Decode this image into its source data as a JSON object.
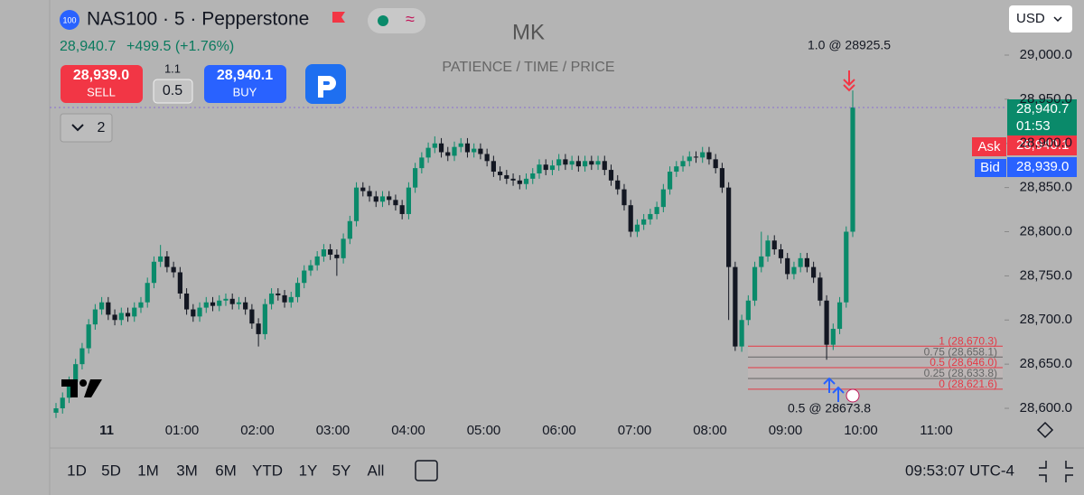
{
  "header": {
    "badge": "100",
    "symbol": "NAS100 · 5 · Pepperstone",
    "price": "28,940.7",
    "change": "+499.5 (+1.76%)"
  },
  "trade": {
    "sell_price": "28,939.0",
    "sell": "SELL",
    "spread_top": "1.1",
    "spread": "0.5",
    "buy_price": "28,940.1",
    "buy": "BUY"
  },
  "indicators": "2",
  "currency": "USD",
  "chart": {
    "type": "candlestick",
    "title": "MK",
    "subtitle": "PATIENCE / TIME / PRICE",
    "ylim": [
      28589.8,
      29062.4
    ],
    "yticks": [
      {
        "value": 28600,
        "label": "28,600.0"
      },
      {
        "value": 28650,
        "label": "28,650.0"
      },
      {
        "value": 28700,
        "label": "28,700.0"
      },
      {
        "value": 28750,
        "label": "28,750.0"
      },
      {
        "value": 28800,
        "label": "28,800.0"
      },
      {
        "value": 28850,
        "label": "28,850.0"
      },
      {
        "value": 28900,
        "label": "28,900.0"
      },
      {
        "value": 28950,
        "label": "28,950.0"
      },
      {
        "value": 29000,
        "label": "29,000.0"
      }
    ],
    "xlabels": [
      "11",
      "01:00",
      "02:00",
      "03:00",
      "04:00",
      "05:00",
      "06:00",
      "07:00",
      "08:00",
      "09:00",
      "10:00",
      "11:00"
    ],
    "up_color": "#0a8a6a",
    "down_color": "#131722",
    "candles": [
      [
        28595,
        28606,
        28589,
        28600
      ],
      [
        28600,
        28618,
        28594,
        28612
      ],
      [
        28612,
        28636,
        28606,
        28630
      ],
      [
        28630,
        28656,
        28624,
        28650
      ],
      [
        28650,
        28674,
        28644,
        28668
      ],
      [
        28668,
        28701,
        28662,
        28695
      ],
      [
        28695,
        28718,
        28689,
        28712
      ],
      [
        28712,
        28726,
        28706,
        28720
      ],
      [
        28720,
        28726,
        28700,
        28706
      ],
      [
        28706,
        28712,
        28694,
        28700
      ],
      [
        28700,
        28714,
        28694,
        28708
      ],
      [
        28708,
        28714,
        28698,
        28704
      ],
      [
        28704,
        28720,
        28698,
        28714
      ],
      [
        28714,
        28726,
        28708,
        28720
      ],
      [
        28720,
        28748,
        28714,
        28742
      ],
      [
        28742,
        28772,
        28736,
        28766
      ],
      [
        28766,
        28785,
        28760,
        28772
      ],
      [
        28772,
        28778,
        28754,
        28760
      ],
      [
        28760,
        28766,
        28748,
        28754
      ],
      [
        28754,
        28760,
        28724,
        28730
      ],
      [
        28730,
        28736,
        28706,
        28712
      ],
      [
        28712,
        28718,
        28698,
        28704
      ],
      [
        28704,
        28720,
        28698,
        28714
      ],
      [
        28714,
        28726,
        28708,
        28720
      ],
      [
        28720,
        28726,
        28710,
        28716
      ],
      [
        28716,
        28728,
        28710,
        28722
      ],
      [
        28722,
        28730,
        28716,
        28724
      ],
      [
        28724,
        28730,
        28712,
        28718
      ],
      [
        28718,
        28726,
        28712,
        28720
      ],
      [
        28720,
        28726,
        28706,
        28712
      ],
      [
        28712,
        28718,
        28690,
        28696
      ],
      [
        28696,
        28702,
        28670,
        28684
      ],
      [
        28684,
        28724,
        28678,
        28718
      ],
      [
        28718,
        28736,
        28712,
        28730
      ],
      [
        28730,
        28736,
        28722,
        28728
      ],
      [
        28728,
        28734,
        28714,
        28720
      ],
      [
        28720,
        28732,
        28714,
        28726
      ],
      [
        28726,
        28748,
        28720,
        28742
      ],
      [
        28742,
        28762,
        28736,
        28756
      ],
      [
        28756,
        28768,
        28750,
        28762
      ],
      [
        28762,
        28778,
        28756,
        28772
      ],
      [
        28772,
        28786,
        28766,
        28780
      ],
      [
        28780,
        28786,
        28768,
        28774
      ],
      [
        28774,
        28780,
        28750,
        28770
      ],
      [
        28770,
        28798,
        28764,
        28792
      ],
      [
        28792,
        28818,
        28786,
        28812
      ],
      [
        28812,
        28856,
        28806,
        28850
      ],
      [
        28850,
        28856,
        28840,
        28846
      ],
      [
        28846,
        28852,
        28834,
        28840
      ],
      [
        28840,
        28846,
        28828,
        28834
      ],
      [
        28834,
        28846,
        28828,
        28840
      ],
      [
        28840,
        28846,
        28830,
        28836
      ],
      [
        28836,
        28842,
        28824,
        28830
      ],
      [
        28830,
        28836,
        28814,
        28820
      ],
      [
        28820,
        28856,
        28814,
        28850
      ],
      [
        28850,
        28878,
        28844,
        28872
      ],
      [
        28872,
        28890,
        28866,
        28884
      ],
      [
        28884,
        28901,
        28878,
        28895
      ],
      [
        28895,
        28908,
        28889,
        28900
      ],
      [
        28900,
        28906,
        28884,
        28890
      ],
      [
        28890,
        28896,
        28880,
        28886
      ],
      [
        28886,
        28902,
        28880,
        28896
      ],
      [
        28896,
        28906,
        28890,
        28900
      ],
      [
        28900,
        28906,
        28884,
        28890
      ],
      [
        28890,
        28900,
        28884,
        28894
      ],
      [
        28894,
        28900,
        28882,
        28888
      ],
      [
        28888,
        28894,
        28874,
        28880
      ],
      [
        28880,
        28886,
        28862,
        28868
      ],
      [
        28868,
        28874,
        28858,
        28864
      ],
      [
        28864,
        28870,
        28854,
        28860
      ],
      [
        28860,
        28866,
        28852,
        28858
      ],
      [
        28858,
        28864,
        28848,
        28854
      ],
      [
        28854,
        28866,
        28848,
        28860
      ],
      [
        28860,
        28872,
        28854,
        28866
      ],
      [
        28866,
        28882,
        28860,
        28876
      ],
      [
        28876,
        28882,
        28864,
        28870
      ],
      [
        28870,
        28881,
        28864,
        28875
      ],
      [
        28875,
        28888,
        28869,
        28882
      ],
      [
        28882,
        28888,
        28870,
        28876
      ],
      [
        28876,
        28886,
        28870,
        28880
      ],
      [
        28880,
        28886,
        28868,
        28874
      ],
      [
        28874,
        28886,
        28868,
        28880
      ],
      [
        28880,
        28886,
        28870,
        28876
      ],
      [
        28876,
        28886,
        28870,
        28880
      ],
      [
        28880,
        28886,
        28864,
        28870
      ],
      [
        28870,
        28876,
        28852,
        28858
      ],
      [
        28858,
        28864,
        28842,
        28848
      ],
      [
        28848,
        28854,
        28824,
        28830
      ],
      [
        28830,
        28836,
        28794,
        28800
      ],
      [
        28800,
        28814,
        28794,
        28808
      ],
      [
        28808,
        28820,
        28802,
        28814
      ],
      [
        28814,
        28826,
        28808,
        28820
      ],
      [
        28820,
        28834,
        28814,
        28828
      ],
      [
        28828,
        28854,
        28822,
        28848
      ],
      [
        28848,
        28874,
        28842,
        28868
      ],
      [
        28868,
        28880,
        28862,
        28874
      ],
      [
        28874,
        28886,
        28868,
        28880
      ],
      [
        28880,
        28891,
        28874,
        28885
      ],
      [
        28885,
        28891,
        28878,
        28884
      ],
      [
        28884,
        28896,
        28878,
        28890
      ],
      [
        28890,
        28896,
        28876,
        28882
      ],
      [
        28882,
        28888,
        28866,
        28872
      ],
      [
        28872,
        28878,
        28844,
        28850
      ],
      [
        28850,
        28856,
        28700,
        28760
      ],
      [
        28760,
        28766,
        28665,
        28670
      ],
      [
        28670,
        28706,
        28664,
        28700
      ],
      [
        28700,
        28728,
        28694,
        28722
      ],
      [
        28722,
        28766,
        28716,
        28760
      ],
      [
        28760,
        28800,
        28754,
        28772
      ],
      [
        28772,
        28796,
        28766,
        28790
      ],
      [
        28790,
        28796,
        28774,
        28780
      ],
      [
        28780,
        28786,
        28764,
        28770
      ],
      [
        28770,
        28776,
        28746,
        28752
      ],
      [
        28752,
        28766,
        28746,
        28760
      ],
      [
        28760,
        28776,
        28754,
        28770
      ],
      [
        28770,
        28776,
        28754,
        28760
      ],
      [
        28760,
        28766,
        28742,
        28748
      ],
      [
        28748,
        28754,
        28716,
        28722
      ],
      [
        28722,
        28728,
        28655,
        28672
      ],
      [
        28672,
        28696,
        28666,
        28690
      ],
      [
        28690,
        28726,
        28684,
        28720
      ],
      [
        28720,
        28806,
        28714,
        28800
      ],
      [
        28800,
        28960,
        28794,
        28940.7
      ]
    ],
    "fib": [
      {
        "value": 28670.3,
        "label": "1 (28,670.3)"
      },
      {
        "value": 28658.1,
        "label": "0.75 (28,658.1)"
      },
      {
        "value": 28646.0,
        "label": "0.5 (28,646.0)"
      },
      {
        "value": 28633.8,
        "label": "0.25 (28,633.8)"
      },
      {
        "value": 28621.6,
        "label": "0 (28,621.6)"
      }
    ],
    "trade_top": "1.0 @ 28925.5",
    "trade_bottom": "0.5 @ 28673.8",
    "last_price": "28,940.7",
    "countdown": "01:53",
    "ask_label": "Ask",
    "ask": "28,940.1",
    "bid_label": "Bid",
    "bid": "28,939.0"
  },
  "footer": {
    "ranges": [
      "1D",
      "5D",
      "1M",
      "3M",
      "6M",
      "YTD",
      "1Y",
      "5Y",
      "All"
    ],
    "clock": "09:53:07 UTC-4"
  }
}
